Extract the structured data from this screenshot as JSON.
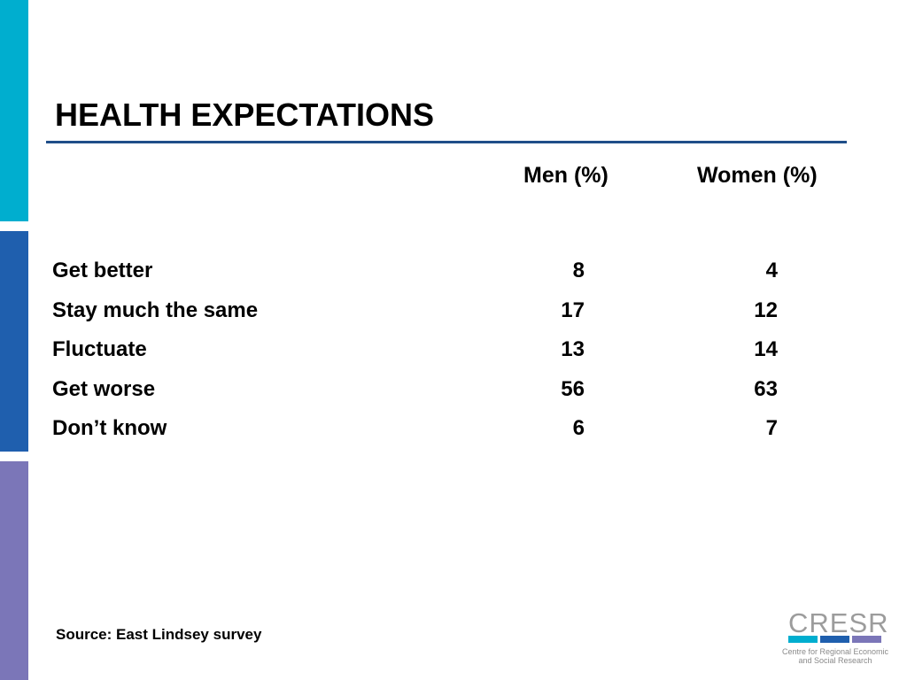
{
  "colors": {
    "bar_cyan": "#00AECF",
    "bar_blue": "#1F5FAE",
    "bar_purple": "#7B76B8",
    "rule": "#1F4E89",
    "logo_text": "#9C9C9C",
    "logo_sub": "#8A8A8A"
  },
  "slide": {
    "title": "HEALTH EXPECTATIONS",
    "columns": {
      "men": "Men (%)",
      "women": "Women (%)"
    },
    "rows": [
      {
        "label": "Get better",
        "men": "8",
        "women": "4"
      },
      {
        "label": "Stay much the same",
        "men": "17",
        "women": "12"
      },
      {
        "label": "Fluctuate",
        "men": "13",
        "women": "14"
      },
      {
        "label": "Get worse",
        "men": "56",
        "women": "63"
      },
      {
        "label": "Don’t know",
        "men": "6",
        "women": "7"
      }
    ],
    "source": "Source: East Lindsey survey"
  },
  "logo": {
    "name": "CRESR",
    "subtitle_line1": "Centre for Regional Economic",
    "subtitle_line2": "and Social Research"
  }
}
